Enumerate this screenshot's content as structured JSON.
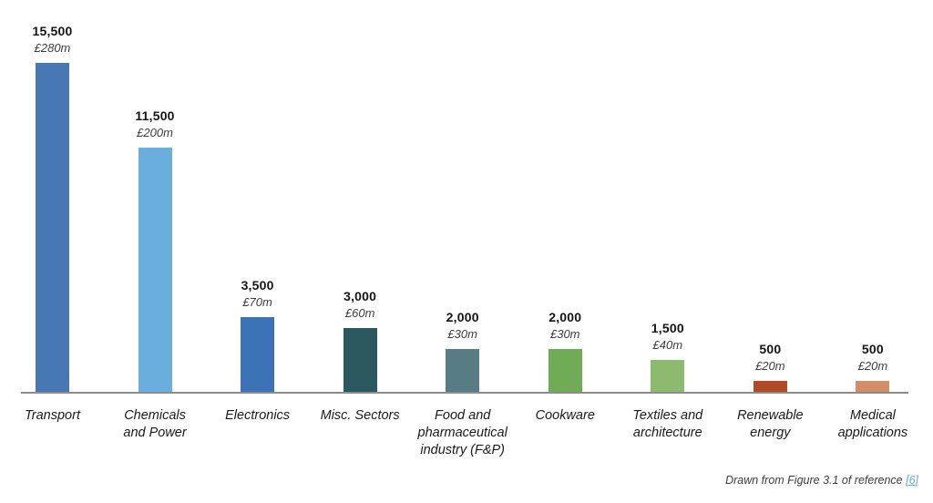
{
  "chart_data": {
    "type": "bar",
    "title": "",
    "xlabel": "",
    "ylabel": "",
    "ylim": [
      0,
      15500
    ],
    "grid": false,
    "legend": false,
    "categories": [
      "Transport",
      "Chemicals and Power",
      "Electronics",
      "Misc. Sectors",
      "Food and pharmaceutical industry (F&P)",
      "Cookware",
      "Textiles and architecture",
      "Renewable energy",
      "Medical applications"
    ],
    "category_lines": [
      [
        "Transport"
      ],
      [
        "Chemicals",
        "and Power"
      ],
      [
        "Electronics"
      ],
      [
        "Misc. Sectors"
      ],
      [
        "Food and",
        "pharmaceutical",
        "industry (F&P)"
      ],
      [
        "Cookware"
      ],
      [
        "Textiles and",
        "architecture"
      ],
      [
        "Renewable",
        "energy"
      ],
      [
        "Medical",
        "applications"
      ]
    ],
    "values": [
      15500,
      11500,
      3500,
      3000,
      2000,
      2000,
      1500,
      500,
      500
    ],
    "value_labels": [
      "15,500",
      "11,500",
      "3,500",
      "3,000",
      "2,000",
      "2,000",
      "1,500",
      "500",
      "500"
    ],
    "money_labels": [
      "£280m",
      "£200m",
      "£70m",
      "£60m",
      "£30m",
      "£30m",
      "£40m",
      "£20m",
      "£20m"
    ],
    "bar_colors": [
      "#4878B4",
      "#69AEDD",
      "#3C73B7",
      "#2B575E",
      "#587C84",
      "#6FAC55",
      "#8CBB70",
      "#B04B28",
      "#D18E66"
    ],
    "axis_color": "#8c8c8c"
  },
  "footnote": {
    "text": "Drawn from Figure 3.1 of reference ",
    "link_label": "[6]",
    "link_color": "#5FA8DC"
  }
}
